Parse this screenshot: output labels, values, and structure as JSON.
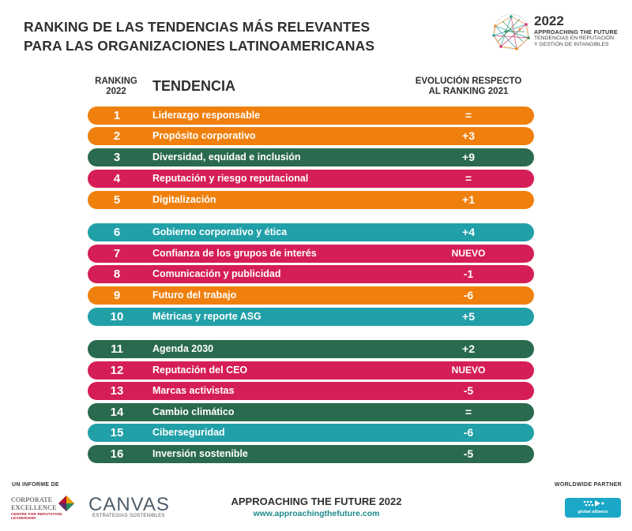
{
  "title_line1": "RANKING DE LAS TENDENCIAS MÁS RELEVANTES",
  "title_line2": "PARA LAS ORGANIZACIONES LATINOAMERICANAS",
  "brand": {
    "year": "2022",
    "name": "APPROACHING THE FUTURE",
    "sub_line1": "TENDENCIAS EN REPUTACIÓN",
    "sub_line2": "Y GESTIÓN DE INTANGIBLES"
  },
  "headers": {
    "rank_line1": "RANKING",
    "rank_line2": "2022",
    "trend": "TENDENCIA",
    "evo_line1": "EVOLUCIÓN RESPECTO",
    "evo_line2": "AL RANKING 2021"
  },
  "colors": {
    "orange": "#f0800e",
    "green": "#2a6a4e",
    "pink": "#d51e56",
    "teal": "#21a0a8"
  },
  "rows": [
    {
      "rank": "1",
      "name": "Liderazgo responsable",
      "evolution": "=",
      "color": "orange"
    },
    {
      "rank": "2",
      "name": "Propósito corporativo",
      "evolution": "+3",
      "color": "orange"
    },
    {
      "rank": "3",
      "name": "Diversidad, equidad e inclusión",
      "evolution": "+9",
      "color": "green"
    },
    {
      "rank": "4",
      "name": "Reputación y riesgo reputacional",
      "evolution": "=",
      "color": "pink"
    },
    {
      "rank": "5",
      "name": "Digitalización",
      "evolution": "+1",
      "color": "orange"
    },
    {
      "rank": "6",
      "name": "Gobierno corporativo y ética",
      "evolution": "+4",
      "color": "teal"
    },
    {
      "rank": "7",
      "name": "Confianza de los grupos de interés",
      "evolution": "NUEVO",
      "color": "pink"
    },
    {
      "rank": "8",
      "name": "Comunicación y publicidad",
      "evolution": "-1",
      "color": "pink"
    },
    {
      "rank": "9",
      "name": "Futuro del trabajo",
      "evolution": "-6",
      "color": "orange"
    },
    {
      "rank": "10",
      "name": "Métricas y reporte ASG",
      "evolution": "+5",
      "color": "teal"
    },
    {
      "rank": "11",
      "name": "Agenda 2030",
      "evolution": "+2",
      "color": "green"
    },
    {
      "rank": "12",
      "name": "Reputación del CEO",
      "evolution": "NUEVO",
      "color": "pink"
    },
    {
      "rank": "13",
      "name": "Marcas activistas",
      "evolution": "-5",
      "color": "pink"
    },
    {
      "rank": "14",
      "name": "Cambio climático",
      "evolution": "=",
      "color": "green"
    },
    {
      "rank": "15",
      "name": "Ciberseguridad",
      "evolution": "-6",
      "color": "teal"
    },
    {
      "rank": "16",
      "name": "Inversión sostenible",
      "evolution": "-5",
      "color": "green"
    }
  ],
  "footer": {
    "report_by": "UN INFORME DE",
    "corporate_line1": "CORPORATE",
    "corporate_line2": "EXCELLENCE",
    "corporate_line3": "CENTRE FOR REPUTATION LEADERSHIP",
    "canvas_name": "CANVAS",
    "canvas_sub": "ESTRATEGIAS SOSTENIBLES",
    "title": "APPROACHING THE FUTURE 2022",
    "url": "www.approachingthefuture.com",
    "partner_label": "WORLDWIDE PARTNER",
    "partner_name": "global alliance"
  }
}
